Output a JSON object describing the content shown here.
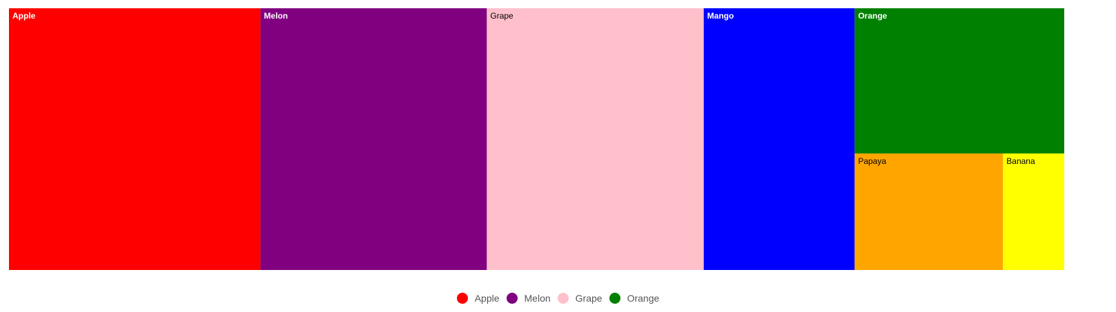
{
  "chart_data": {
    "type": "treemap",
    "title": "",
    "nodes": [
      {
        "name": "Apple",
        "value": 24.0,
        "color": "#ff0000",
        "label_color": "#ffffff",
        "label_bold": true
      },
      {
        "name": "Melon",
        "value": 21.6,
        "color": "#800080",
        "label_color": "#ffffff",
        "label_bold": true
      },
      {
        "name": "Grape",
        "value": 20.7,
        "color": "#ffc0cb",
        "label_color": "#000000",
        "label_bold": false
      },
      {
        "name": "Mango",
        "value": 14.4,
        "color": "#0000ff",
        "label_color": "#ffffff",
        "label_bold": true
      },
      {
        "name": "Orange",
        "value": 11.1,
        "color": "#008000",
        "label_color": "#ffffff",
        "label_bold": true
      },
      {
        "name": "Papaya",
        "value": 6.3,
        "color": "#ffa500",
        "label_color": "#000000",
        "label_bold": false
      },
      {
        "name": "Banana",
        "value": 2.6,
        "color": "#ffff00",
        "label_color": "#000000",
        "label_bold": false
      }
    ],
    "legend": {
      "position": "bottom-center",
      "items": [
        {
          "label": "Apple",
          "color": "#ff0000"
        },
        {
          "label": "Melon",
          "color": "#800080"
        },
        {
          "label": "Grape",
          "color": "#ffc0cb"
        },
        {
          "label": "Orange",
          "color": "#008000"
        }
      ]
    }
  }
}
